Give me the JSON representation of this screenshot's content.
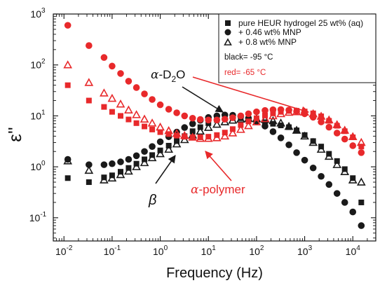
{
  "chart_data": {
    "type": "scatter",
    "xlabel": "Frequency (Hz)",
    "ylabel": "ε''",
    "x_scale": "log",
    "y_scale": "log",
    "xlim": [
      0.006,
      30000
    ],
    "ylim": [
      0.035,
      1000
    ],
    "x_ticks": [
      {
        "value": 0.01,
        "mantissa": "10",
        "exp": "-2"
      },
      {
        "value": 0.1,
        "mantissa": "10",
        "exp": "-1"
      },
      {
        "value": 1,
        "mantissa": "10",
        "exp": "0"
      },
      {
        "value": 10,
        "mantissa": "10",
        "exp": "1"
      },
      {
        "value": 100,
        "mantissa": "10",
        "exp": "2"
      },
      {
        "value": 1000,
        "mantissa": "10",
        "exp": "3"
      },
      {
        "value": 10000,
        "mantissa": "10",
        "exp": "4"
      }
    ],
    "y_ticks": [
      {
        "value": 0.1,
        "mantissa": "10",
        "exp": "-1"
      },
      {
        "value": 1,
        "mantissa": "10",
        "exp": "0"
      },
      {
        "value": 10,
        "mantissa": "10",
        "exp": "1"
      },
      {
        "value": 100,
        "mantissa": "10",
        "exp": "2"
      },
      {
        "value": 1000,
        "mantissa": "10",
        "exp": "3"
      }
    ],
    "colors": {
      "black": "#1a1a1a",
      "red": "#e8292b"
    },
    "legend": {
      "position": "top-right",
      "entries": [
        {
          "marker": "square",
          "label": "pure HEUR hydrogel 25 wt% (aq)"
        },
        {
          "marker": "circle",
          "label": "+ 0.46 wt% MNP"
        },
        {
          "marker": "triangle",
          "label": "+ 0.8 wt% MNP"
        }
      ],
      "notes": [
        {
          "color": "black",
          "text": "black= -95 °C"
        },
        {
          "color": "red",
          "text": "red= -65 °C"
        }
      ]
    },
    "annotations": {
      "alpha_d2o": {
        "greek": "α",
        "text": "-D",
        "sub": "2",
        "tail": "O"
      },
      "alpha_polymer": {
        "greek": "α",
        "text": "-polymer"
      },
      "beta": {
        "greek": "β"
      }
    },
    "series": [
      {
        "color": "black",
        "marker": "square",
        "x": [
          0.012,
          0.033,
          0.068,
          0.1,
          0.15,
          0.22,
          0.32,
          0.47,
          0.68,
          1.0,
          1.5,
          2.2,
          3.2,
          4.7,
          6.8,
          10,
          15,
          22,
          32,
          47,
          68,
          100,
          150,
          220,
          320,
          470,
          680,
          1000,
          1500,
          2200,
          3200,
          4700,
          6800,
          10000,
          15000
        ],
        "y": [
          0.6,
          0.5,
          0.62,
          0.68,
          0.8,
          0.95,
          1.15,
          1.4,
          1.7,
          2.1,
          2.6,
          3.2,
          4.0,
          5.0,
          6.0,
          7.2,
          8.3,
          9.0,
          9.2,
          9.0,
          8.6,
          8.0,
          7.5,
          7.0,
          6.5,
          6.0,
          5.2,
          4.2,
          3.2,
          2.5,
          1.8,
          1.3,
          0.9,
          0.6,
          0.2
        ]
      },
      {
        "color": "black",
        "marker": "circle",
        "x": [
          0.012,
          0.033,
          0.068,
          0.1,
          0.15,
          0.22,
          0.32,
          0.47,
          0.68,
          1.0,
          1.5,
          2.2,
          3.2,
          4.7,
          6.8,
          10,
          15,
          22,
          32,
          47,
          68,
          100,
          150,
          220,
          320,
          470,
          680,
          1000,
          1500,
          2200,
          3200,
          4700,
          6800,
          10000,
          15000
        ],
        "y": [
          1.4,
          1.1,
          1.1,
          1.15,
          1.25,
          1.4,
          1.65,
          2.0,
          2.5,
          3.1,
          3.9,
          4.8,
          5.9,
          7.0,
          8.2,
          9.3,
          10.0,
          10.4,
          10.3,
          9.8,
          9.0,
          7.8,
          6.3,
          4.9,
          3.7,
          2.7,
          1.9,
          1.35,
          0.95,
          0.65,
          0.45,
          0.3,
          0.2,
          0.13,
          0.07
        ]
      },
      {
        "color": "black",
        "marker": "triangle",
        "x": [
          0.012,
          0.033,
          0.068,
          0.1,
          0.15,
          0.22,
          0.32,
          0.47,
          0.68,
          1.0,
          1.5,
          2.2,
          3.2,
          4.7,
          6.8,
          10,
          15,
          22,
          32,
          47,
          68,
          100,
          150,
          220,
          320,
          470,
          680,
          1000,
          1500,
          2200,
          3200,
          4700,
          6800,
          10000,
          15000
        ],
        "y": [
          1.3,
          0.85,
          0.55,
          0.6,
          0.7,
          0.82,
          1.0,
          1.2,
          1.5,
          1.8,
          2.2,
          2.8,
          3.4,
          4.2,
          5.0,
          5.9,
          6.8,
          7.6,
          8.2,
          8.6,
          8.8,
          8.8,
          8.5,
          8.0,
          7.2,
          6.2,
          5.2,
          4.0,
          3.0,
          2.2,
          1.6,
          1.1,
          0.8,
          0.55,
          0.5
        ]
      },
      {
        "color": "red",
        "marker": "square",
        "x": [
          0.012,
          0.033,
          0.068,
          0.1,
          0.15,
          0.22,
          0.32,
          0.47,
          0.68,
          1.0,
          1.5,
          2.2,
          3.2,
          4.7,
          6.8,
          10,
          15,
          22,
          32,
          47,
          68,
          100,
          150,
          220,
          320,
          470,
          680,
          1000,
          1500,
          2200,
          3200,
          4700,
          6800,
          10000,
          15000
        ],
        "y": [
          40,
          20,
          15,
          12,
          10,
          8.5,
          7.2,
          6.2,
          5.4,
          4.8,
          4.4,
          4.1,
          3.9,
          3.8,
          3.8,
          3.9,
          4.2,
          4.7,
          5.5,
          6.6,
          7.8,
          9.0,
          10.2,
          11.2,
          12.0,
          12.5,
          12.6,
          12.2,
          11.2,
          9.8,
          8.0,
          6.4,
          5.0,
          3.8,
          2.5
        ]
      },
      {
        "color": "red",
        "marker": "circle",
        "x": [
          0.012,
          0.033,
          0.068,
          0.1,
          0.15,
          0.22,
          0.32,
          0.47,
          0.68,
          1.0,
          1.5,
          2.2,
          3.2,
          4.7,
          6.8,
          10,
          15,
          22,
          32,
          47,
          68,
          100,
          150,
          220,
          320,
          470,
          680,
          1000,
          1500,
          2200,
          3200,
          4700,
          6800,
          10000,
          15000
        ],
        "y": [
          600,
          240,
          140,
          95,
          68,
          48,
          36,
          27,
          21,
          16.5,
          13.5,
          11.5,
          10.0,
          9.0,
          8.5,
          8.3,
          8.3,
          8.6,
          9.2,
          10.0,
          11.0,
          12.0,
          12.8,
          13.2,
          13.3,
          13.0,
          12.3,
          11.0,
          9.4,
          7.6,
          6.0,
          4.6,
          3.5,
          2.6,
          1.9
        ]
      },
      {
        "color": "red",
        "marker": "triangle",
        "x": [
          0.012,
          0.033,
          0.068,
          0.1,
          0.15,
          0.22,
          0.32,
          0.47,
          0.68,
          1.0,
          1.5,
          2.2,
          3.2,
          4.7,
          6.8,
          10,
          15,
          22,
          32,
          47,
          68,
          100,
          150,
          220,
          320,
          470,
          680,
          1000,
          1500,
          2200,
          3200,
          4700,
          6800,
          10000,
          15000
        ],
        "y": [
          100,
          45,
          28,
          22,
          17,
          13,
          10.5,
          8.6,
          7.2,
          6.0,
          5.1,
          4.5,
          4.1,
          3.8,
          3.6,
          3.6,
          3.7,
          4.0,
          4.6,
          5.4,
          6.4,
          7.6,
          8.8,
          10.0,
          11.0,
          11.7,
          12.0,
          11.8,
          11.0,
          9.8,
          8.3,
          6.7,
          5.2,
          3.9,
          3.0
        ]
      }
    ]
  }
}
